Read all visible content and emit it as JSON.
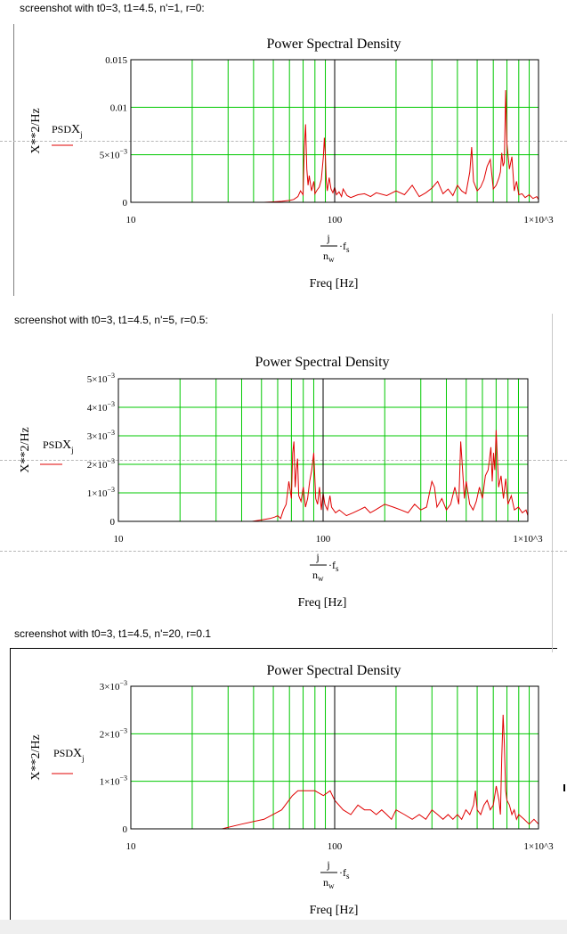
{
  "captions": [
    "screenshot with t0=3, t1=4.5, n'=1, r=0:",
    "screenshot with t0=3, t1=4.5, n'=5, r=0.5:",
    "screenshot with t0=3, t1=4.5, n'=20, r=0.1"
  ],
  "colors": {
    "grid": "#00c800",
    "series": "#e00000",
    "frame": "#000000"
  },
  "chart_data": [
    {
      "type": "line",
      "title": "Power Spectral Density",
      "xlabel": "Freq [Hz]",
      "xexpr": {
        "num": "j",
        "den": "n",
        "den_sub": "w",
        "mult": "f",
        "mult_sub": "s"
      },
      "ylabel": "X**2/Hz",
      "legend": {
        "label": "PSD",
        "sub_var": "X",
        "sub_idx": "j"
      },
      "xscale": "log",
      "xlim": [
        10,
        1000
      ],
      "ylim": [
        0,
        0.015
      ],
      "x_ticks": [
        "10",
        "100",
        "1×10^3"
      ],
      "y_ticks": [
        {
          "v": 0,
          "m": "0",
          "e": ""
        },
        {
          "v": 0.005,
          "m": "5×10",
          "e": "−3"
        },
        {
          "v": 0.01,
          "m": "0.01",
          "e": ""
        },
        {
          "v": 0.015,
          "m": "0.015",
          "e": ""
        }
      ],
      "series": [
        {
          "name": "PSD",
          "x": [
            45,
            50,
            55,
            60,
            63,
            66,
            68,
            70,
            71,
            72,
            73,
            74,
            75,
            77,
            79,
            80,
            82,
            84,
            86,
            88,
            89,
            90,
            91,
            92,
            94,
            96,
            98,
            100,
            102,
            105,
            108,
            110,
            115,
            120,
            130,
            140,
            150,
            160,
            180,
            200,
            220,
            240,
            260,
            280,
            300,
            320,
            340,
            360,
            380,
            400,
            420,
            440,
            460,
            470,
            480,
            500,
            520,
            540,
            560,
            580,
            600,
            620,
            640,
            650,
            660,
            670,
            680,
            690,
            700,
            720,
            740,
            760,
            780,
            800,
            830,
            860,
            900,
            940,
            980,
            1000
          ],
          "y": [
            0,
            5e-05,
            0.0001,
            0.0002,
            0.0003,
            0.0006,
            0.0012,
            0.0008,
            0.0058,
            0.0082,
            0.0035,
            0.0018,
            0.0028,
            0.0012,
            0.0022,
            0.0009,
            0.0013,
            0.0016,
            0.0024,
            0.0048,
            0.0068,
            0.005,
            0.0022,
            0.0012,
            0.0026,
            0.0014,
            0.001,
            0.0016,
            0.0008,
            0.0011,
            0.0006,
            0.0014,
            0.0007,
            0.0005,
            0.0008,
            0.0009,
            0.0006,
            0.001,
            0.0007,
            0.0012,
            0.0008,
            0.0018,
            0.0006,
            0.001,
            0.0015,
            0.0022,
            0.0009,
            0.0014,
            0.0007,
            0.0018,
            0.0012,
            0.0009,
            0.0032,
            0.0058,
            0.0022,
            0.0012,
            0.0016,
            0.0024,
            0.0038,
            0.0045,
            0.0014,
            0.0018,
            0.0026,
            0.0032,
            0.0052,
            0.0038,
            0.0042,
            0.0118,
            0.0062,
            0.0035,
            0.0048,
            0.0012,
            0.0022,
            0.0008,
            0.0009,
            0.0005,
            0.0008,
            0.0004,
            0.0006,
            0.0003
          ]
        }
      ]
    },
    {
      "type": "line",
      "title": "Power Spectral Density",
      "xlabel": "Freq [Hz]",
      "xexpr": {
        "num": "j",
        "den": "n",
        "den_sub": "w",
        "mult": "f",
        "mult_sub": "s"
      },
      "ylabel": "X**2/Hz",
      "legend": {
        "label": "PSD",
        "sub_var": "X",
        "sub_idx": "j"
      },
      "xscale": "log",
      "xlim": [
        10,
        1000
      ],
      "ylim": [
        0,
        0.005
      ],
      "x_ticks": [
        "10",
        "100",
        "1×10^3"
      ],
      "y_ticks": [
        {
          "v": 0,
          "m": "0",
          "e": ""
        },
        {
          "v": 0.001,
          "m": "1×10",
          "e": "−3"
        },
        {
          "v": 0.002,
          "m": "2×10",
          "e": "−3"
        },
        {
          "v": 0.003,
          "m": "3×10",
          "e": "−3"
        },
        {
          "v": 0.004,
          "m": "4×10",
          "e": "−3"
        },
        {
          "v": 0.005,
          "m": "5×10",
          "e": "−3"
        }
      ],
      "series": [
        {
          "name": "PSD",
          "x": [
            45,
            50,
            55,
            58,
            60,
            62,
            64,
            66,
            68,
            70,
            71,
            72,
            73,
            74,
            75,
            76,
            78,
            80,
            82,
            84,
            86,
            88,
            90,
            91,
            92,
            94,
            96,
            98,
            100,
            102,
            105,
            108,
            110,
            115,
            120,
            130,
            140,
            150,
            160,
            170,
            180,
            200,
            220,
            240,
            260,
            280,
            300,
            320,
            340,
            350,
            360,
            380,
            400,
            420,
            440,
            460,
            470,
            480,
            490,
            500,
            520,
            540,
            560,
            580,
            600,
            620,
            640,
            650,
            660,
            670,
            680,
            690,
            700,
            720,
            740,
            760,
            780,
            800,
            830,
            860,
            900,
            940,
            980,
            1000
          ],
          "y": [
            0,
            5e-05,
            0.0001,
            0.00015,
            0.0002,
            0.0001,
            0.0004,
            0.0006,
            0.0014,
            0.0008,
            0.0024,
            0.0028,
            0.0012,
            0.0018,
            0.0022,
            0.0009,
            0.0007,
            0.0012,
            0.0005,
            0.0008,
            0.0014,
            0.0018,
            0.0024,
            0.0016,
            0.0008,
            0.0006,
            0.0012,
            0.0004,
            0.001,
            0.0006,
            0.0004,
            0.0009,
            0.0005,
            0.0003,
            0.0004,
            0.0002,
            0.0003,
            0.0004,
            0.0005,
            0.0003,
            0.0004,
            0.0006,
            0.0005,
            0.0004,
            0.0003,
            0.0006,
            0.0004,
            0.0005,
            0.0014,
            0.0012,
            0.0005,
            0.0008,
            0.0004,
            0.0006,
            0.0012,
            0.0006,
            0.0028,
            0.0018,
            0.0008,
            0.0014,
            0.0006,
            0.0004,
            0.0007,
            0.0012,
            0.0008,
            0.0016,
            0.0018,
            0.0022,
            0.0026,
            0.0014,
            0.0024,
            0.0018,
            0.0032,
            0.0012,
            0.0016,
            0.0008,
            0.0015,
            0.0006,
            0.0009,
            0.0004,
            0.0005,
            0.0003,
            0.0004,
            0.0002
          ]
        }
      ]
    },
    {
      "type": "line",
      "title": "Power Spectral Density",
      "xlabel": "Freq [Hz]",
      "xexpr": {
        "num": "j",
        "den": "n",
        "den_sub": "w",
        "mult": "f",
        "mult_sub": "s"
      },
      "ylabel": "X**2/Hz",
      "legend": {
        "label": "PSD",
        "sub_var": "X",
        "sub_idx": "j"
      },
      "xscale": "log",
      "xlim": [
        10,
        1000
      ],
      "ylim": [
        0,
        0.003
      ],
      "x_ticks": [
        "10",
        "100",
        "1×10^3"
      ],
      "y_ticks": [
        {
          "v": 0,
          "m": "0",
          "e": ""
        },
        {
          "v": 0.001,
          "m": "1×10",
          "e": "−3"
        },
        {
          "v": 0.002,
          "m": "2×10",
          "e": "−3"
        },
        {
          "v": 0.003,
          "m": "3×10",
          "e": "−3"
        }
      ],
      "series": [
        {
          "name": "PSD",
          "x": [
            28,
            35,
            45,
            55,
            62,
            66,
            72,
            80,
            88,
            95,
            100,
            110,
            120,
            130,
            140,
            150,
            160,
            170,
            180,
            190,
            200,
            220,
            240,
            260,
            280,
            300,
            320,
            340,
            360,
            380,
            400,
            420,
            440,
            460,
            480,
            490,
            500,
            520,
            540,
            560,
            580,
            600,
            620,
            640,
            650,
            660,
            670,
            680,
            690,
            700,
            720,
            740,
            760,
            780,
            800,
            850,
            900,
            950,
            1000
          ],
          "y": [
            0,
            0.0001,
            0.0002,
            0.0004,
            0.0007,
            0.0008,
            0.0008,
            0.0008,
            0.0007,
            0.0008,
            0.0006,
            0.0004,
            0.0003,
            0.0005,
            0.0004,
            0.0004,
            0.0003,
            0.0004,
            0.0003,
            0.0002,
            0.0004,
            0.0003,
            0.0002,
            0.0003,
            0.0002,
            0.0004,
            0.0003,
            0.0002,
            0.0003,
            0.0002,
            0.0003,
            0.0002,
            0.0004,
            0.0003,
            0.0005,
            0.0008,
            0.0004,
            0.0003,
            0.0005,
            0.0006,
            0.0004,
            0.0005,
            0.0009,
            0.0006,
            0.0003,
            0.0015,
            0.0024,
            0.0018,
            0.0008,
            0.0006,
            0.0005,
            0.0003,
            0.0004,
            0.0002,
            0.0003,
            0.0002,
            0.0001,
            0.0002,
            0.0001
          ]
        }
      ]
    }
  ]
}
